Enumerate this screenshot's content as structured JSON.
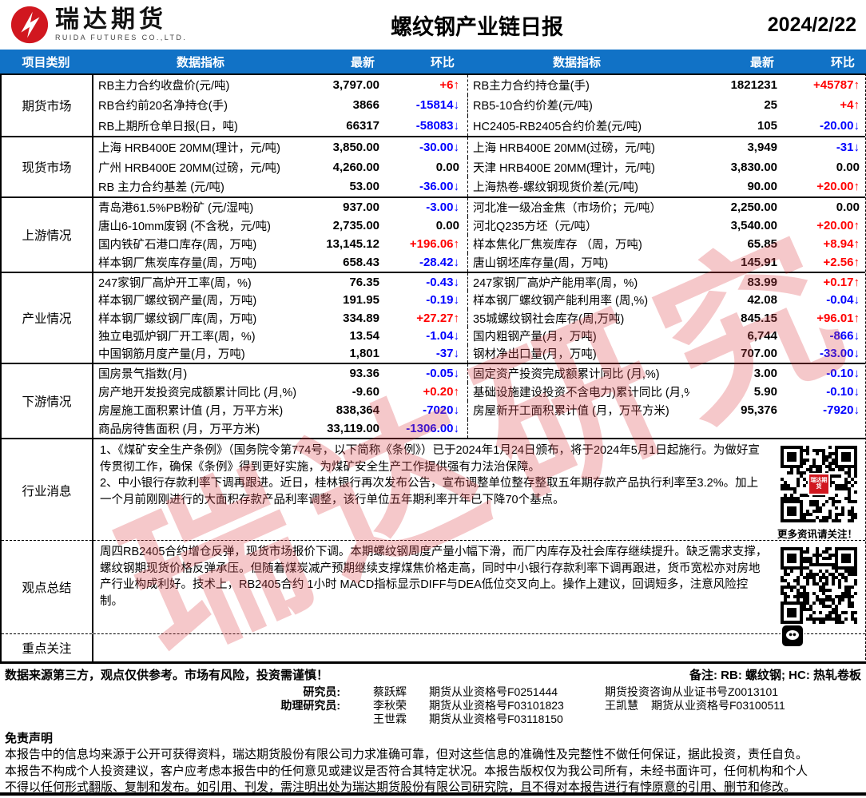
{
  "colors": {
    "accent_blue": "#1172c6",
    "up_red": "#ff0000",
    "down_blue": "#0000ff",
    "brand_red": "#d1171f",
    "watermark_red": "rgba(222,74,80,0.30)"
  },
  "header": {
    "brand_cn": "瑞达期货",
    "brand_en": "RUIDA FUTURES CO.,LTD.",
    "title": "螺纹钢产业链日报",
    "date": "2024/2/22"
  },
  "watermark": {
    "text": "瑞达研究"
  },
  "table": {
    "columns": [
      "项目类别",
      "数据指标",
      "最新",
      "环比",
      "数据指标",
      "最新",
      "环比"
    ],
    "sections": [
      {
        "category": "期货市场",
        "rows": [
          {
            "l_ind": "RB主力合约收盘价(元/吨)",
            "l_val": "3,797.00",
            "l_chg": "+6↑",
            "l_dir": "up",
            "r_ind": "RB主力合约持仓量(手)",
            "r_val": "1821231",
            "r_chg": "+45787↑",
            "r_dir": "up"
          },
          {
            "l_ind": "RB合约前20名净持仓(手)",
            "l_val": "3866",
            "l_chg": "-15814↓",
            "l_dir": "down",
            "r_ind": "RB5-10合约价差(元/吨)",
            "r_val": "25",
            "r_chg": "+4↑",
            "r_dir": "up"
          },
          {
            "l_ind": "RB上期所仓单日报(日，吨)",
            "l_val": "66317",
            "l_chg": "-58083↓",
            "l_dir": "down",
            "r_ind": "HC2405-RB2405合约价差(元/吨)",
            "r_val": "105",
            "r_chg": "-20.00↓",
            "r_dir": "down"
          }
        ]
      },
      {
        "category": "现货市场",
        "rows": [
          {
            "l_ind": "上海 HRB400E 20MM(理计，元/吨)",
            "l_val": "3,850.00",
            "l_chg": "-30.00↓",
            "l_dir": "down",
            "r_ind": "上海 HRB400E 20MM(过磅，元/吨)",
            "r_val": "3,949",
            "r_chg": "-31↓",
            "r_dir": "down"
          },
          {
            "l_ind": "广州 HRB400E 20MM(过磅，元/吨)",
            "l_val": "4,260.00",
            "l_chg": "0.00",
            "l_dir": "flat",
            "r_ind": "天津 HRB400E 20MM(理计，元/吨)",
            "r_val": "3,830.00",
            "r_chg": "0.00",
            "r_dir": "flat"
          },
          {
            "l_ind": "RB 主力合约基差 (元/吨)",
            "l_val": "53.00",
            "l_chg": "-36.00↓",
            "l_dir": "down",
            "r_ind": "上海热卷-螺纹钢现货价差(元/吨)",
            "r_val": "90.00",
            "r_chg": "+20.00↑",
            "r_dir": "up"
          }
        ]
      },
      {
        "category": "上游情况",
        "rows": [
          {
            "l_ind": "青岛港61.5%PB粉矿 (元/湿吨)",
            "l_val": "937.00",
            "l_chg": "-3.00↓",
            "l_dir": "down",
            "r_ind": "河北准一级冶金焦（市场价；元/吨）",
            "r_val": "2,250.00",
            "r_chg": "0.00",
            "r_dir": "flat"
          },
          {
            "l_ind": "唐山6-10mm废钢 (不含税，元/吨)",
            "l_val": "2,735.00",
            "l_chg": "0.00",
            "l_dir": "flat",
            "r_ind": "河北Q235方坯（元/吨）",
            "r_val": "3,540.00",
            "r_chg": "+20.00↑",
            "r_dir": "up"
          },
          {
            "l_ind": "国内铁矿石港口库存(周，万吨)",
            "l_val": "13,145.12",
            "l_chg": "+196.06↑",
            "l_dir": "up",
            "r_ind": "样本焦化厂焦炭库存 （周，万吨)",
            "r_val": "65.85",
            "r_chg": "+8.94↑",
            "r_dir": "up"
          },
          {
            "l_ind": "样本钢厂焦炭库存量(周，万吨)",
            "l_val": "658.43",
            "l_chg": "-28.42↓",
            "l_dir": "down",
            "r_ind": "唐山钢坯库存量(周，万吨)",
            "r_val": "145.91",
            "r_chg": "+2.56↑",
            "r_dir": "up"
          }
        ]
      },
      {
        "category": "产业情况",
        "rows": [
          {
            "l_ind": "247家钢厂高炉开工率(周，%)",
            "l_val": "76.35",
            "l_chg": "-0.43↓",
            "l_dir": "down",
            "r_ind": "247家钢厂高炉产能用率(周，%)",
            "r_val": "83.99",
            "r_chg": "+0.17↑",
            "r_dir": "up"
          },
          {
            "l_ind": "样本钢厂螺纹钢产量(周，万吨)",
            "l_val": "191.95",
            "l_chg": "-0.19↓",
            "l_dir": "down",
            "r_ind": "样本钢厂螺纹钢产能利用率 (周,%)",
            "r_val": "42.08",
            "r_chg": "-0.04↓",
            "r_dir": "down"
          },
          {
            "l_ind": "样本钢厂螺纹钢厂库(周，万吨)",
            "l_val": "334.89",
            "l_chg": "+27.27↑",
            "l_dir": "up",
            "r_ind": "35城螺纹钢社会库存(周,万吨)",
            "r_val": "845.15",
            "r_chg": "+96.01↑",
            "r_dir": "up"
          },
          {
            "l_ind": "独立电弧炉钢厂开工率(周，%)",
            "l_val": "13.54",
            "l_chg": "-1.04↓",
            "l_dir": "down",
            "r_ind": "国内粗钢产量(月，万吨)",
            "r_val": "6,744",
            "r_chg": "-866↓",
            "r_dir": "down"
          },
          {
            "l_ind": "中国钢筋月度产量(月，万吨)",
            "l_val": "1,801",
            "l_chg": "-37↓",
            "l_dir": "down",
            "r_ind": "钢材净出口量(月，万吨)",
            "r_val": "707.00",
            "r_chg": "-33.00↓",
            "r_dir": "down"
          }
        ]
      },
      {
        "category": "下游情况",
        "rows": [
          {
            "l_ind": "国房景气指数(月)",
            "l_val": "93.36",
            "l_chg": "-0.05↓",
            "l_dir": "down",
            "r_ind": "固定资产投资完成额累计同比 (月,%)",
            "r_val": "3.00",
            "r_chg": "-0.10↓",
            "r_dir": "down"
          },
          {
            "l_ind": "房产地开发投资完成额累计同比 (月,%)",
            "l_val": "-9.60",
            "l_chg": "+0.20↑",
            "l_dir": "up",
            "r_ind": "基础设施建设投资不含电力)累计同比 (月,%",
            "r_val": "5.90",
            "r_chg": "-0.10↓",
            "r_dir": "down"
          },
          {
            "l_ind": "房屋施工面积累计值 (月，万平方米)",
            "l_val": "838,364",
            "l_chg": "-7020↓",
            "l_dir": "down",
            "r_ind": "房屋新开工面积累计值 (月，万平方米)",
            "r_val": "95,376",
            "r_chg": "-7920↓",
            "r_dir": "down"
          },
          {
            "l_ind": "商品房待售面积 (月，万平方米)",
            "l_val": "33,119.00",
            "l_chg": "-1306.00↓",
            "l_dir": "down",
            "r_ind": "",
            "r_val": "",
            "r_chg": "",
            "r_dir": "flat"
          }
        ]
      }
    ]
  },
  "news": {
    "category": "行业消息",
    "lines": [
      "1、《煤矿安全生产条例》（国务院令第774号，以下简称《条例》）已于2024年1月24日颁布，将于2024年5月1日起施行。为做好宣传贯彻工作，确保《条例》得到更好实施，为煤矿安全生产工作提供强有力法治保障。",
      "2、中小银行存款利率下调再跟进。近日，桂林银行再次发布公告，宣布调整单位整存整取五年期存款产品执行利率至3.2%。加上一个月前刚刚进行的大面积存款产品利率调整，该行单位五年期利率开年已下降70个基点。"
    ],
    "qr_badge": "瑞达期货",
    "qr_caption": "更多资讯请关注！"
  },
  "summary": {
    "category": "观点总结",
    "text": "周四RB2405合约增仓反弹，现货市场报价下调。本期螺纹钢周度产量小幅下滑，而厂内库存及社会库存继续提升。缺乏需求支撑，螺纹钢期现货价格反弹承压。但随着煤炭减产预期继续支撑煤焦价格走高，同时中小银行存款利率下调再跟进，货币宽松亦对房地产行业构成利好。技术上，RB2405合约 1小时 MACD指标显示DIFF与DEA低位交叉向上。操作上建议，回调短多，注意风险控制。"
  },
  "focus": {
    "category": "重点关注",
    "text": ""
  },
  "footer": {
    "disclaimer_short": "数据来源第三方，观点仅供参考。市场有风险，投资需谨慎！",
    "remark": "备注: RB: 螺纹钢; HC: 热轧卷板",
    "researchers": [
      {
        "label": "研究员:",
        "cells": [
          "蔡跃辉",
          "期货从业资格号F0251444",
          "期货投资咨询从业证书号Z0013101",
          ""
        ]
      },
      {
        "label": "助理研究员:",
        "cells": [
          "李秋荣",
          "期货从业资格号F03101823",
          "王凯慧",
          "期货从业资格号F03100511"
        ]
      },
      {
        "label": "",
        "cells": [
          "王世霖",
          "期货从业资格号F03118150",
          "",
          ""
        ]
      }
    ],
    "legal_title": "免责声明",
    "legal_lines": [
      "本报告中的信息均来源于公开可获得资料，瑞达期货股份有限公司力求准确可靠，但对这些信息的准确性及完整性不做任何保证，据此投资，责任自负。",
      "本报告不构成个人投资建议，客户应考虑本报告中的任何意见或建议是否符合其特定状况。本报告版权仅为我公司所有，未经书面许可，任何机构和个人",
      "不得以任何形式翻版、复制和发布。如引用、刊发，需注明出处为瑞达期货股份有限公司研究院，且不得对本报告进行有悖原意的引用、删节和修改。"
    ]
  }
}
